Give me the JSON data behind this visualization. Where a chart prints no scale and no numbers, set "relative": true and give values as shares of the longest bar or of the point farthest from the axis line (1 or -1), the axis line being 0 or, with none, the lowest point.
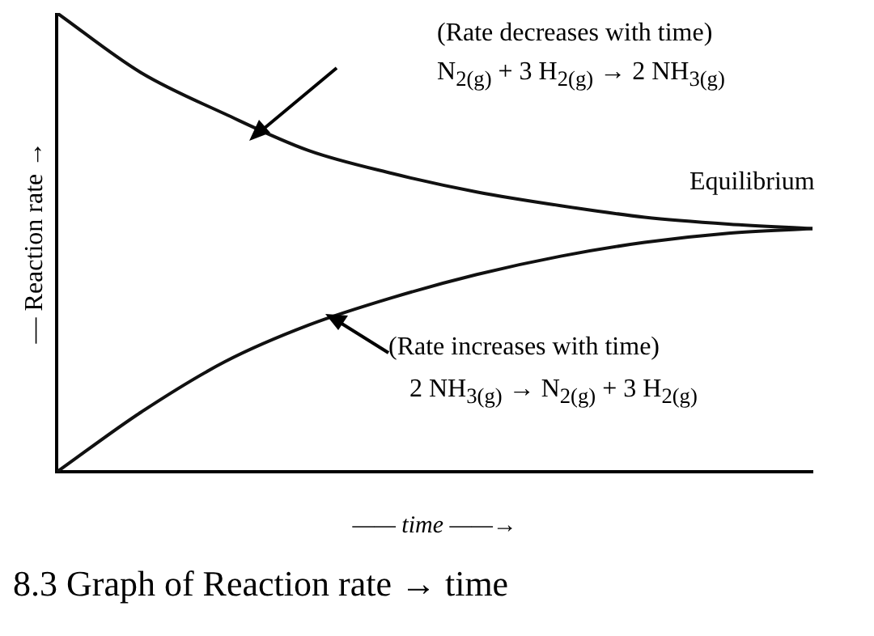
{
  "chart_data": {
    "type": "line",
    "relative": true,
    "xlabel": "—— time ——→",
    "ylabel": "— Reaction rate →",
    "title": "8.3 Graph of Reaction rate → time",
    "categories": [
      null,
      null,
      null,
      null,
      null,
      null,
      null,
      null,
      null,
      null
    ],
    "series": [
      {
        "color": "#111111",
        "values": [
          1.0,
          0.87,
          0.78,
          0.7,
          0.65,
          0.61,
          0.58,
          0.555,
          0.54,
          0.53
        ]
      },
      {
        "color": "#111111",
        "values": [
          0,
          0.13,
          0.24,
          0.32,
          0.38,
          0.43,
          0.47,
          0.5,
          0.52,
          0.53
        ]
      }
    ],
    "annotations": [
      "(Rate decreases with time)",
      "N$_{2(g)}$ + 3 H$_{2(g)}$ → 2 NH$_{3(g)}$",
      "Equilibrium",
      "(Rate increases with time)",
      "2 NH$_{3(g)}$ → N$_{2(g)}$ + 3 H$_{2(g)}$"
    ],
    "grid": false,
    "legend": false,
    "marker": "none",
    "line_style": "solid"
  }
}
